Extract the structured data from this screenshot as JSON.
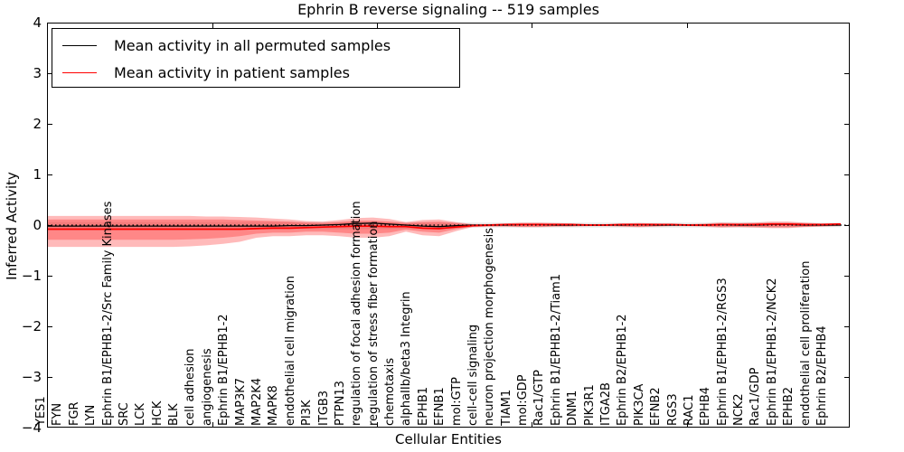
{
  "figure": {
    "title": "Ephrin B reverse signaling -- 519 samples",
    "xlabel": "Cellular Entities",
    "ylabel": "Inferred Activity"
  },
  "legend": {
    "position": "upper-left",
    "entries": [
      {
        "label": "Mean activity in all permuted samples",
        "color": "#000000"
      },
      {
        "label": "Mean activity in patient samples",
        "color": "#ff0000"
      }
    ]
  },
  "chart_data": {
    "type": "area",
    "subtype": "violin-bands-with-mean-lines",
    "title": "Ephrin B reverse signaling -- 519 samples",
    "xlabel": "Cellular Entities",
    "ylabel": "Inferred Activity",
    "ylim": [
      -4,
      4
    ],
    "yticks": [
      "4",
      "3",
      "2",
      "1",
      "0",
      "−1",
      "−2",
      "−3",
      "−4"
    ],
    "grid": false,
    "legend_position": "upper-left",
    "zero_line": {
      "y": 0,
      "style": "dotted",
      "color": "#000000"
    },
    "colors": {
      "patient_band": "rgba(255,0,0,0.27)",
      "permuted_band": "rgba(90,90,90,0.13)",
      "permuted_line": "#000000",
      "patient_line": "#ff0000"
    },
    "categories": [
      "YES1",
      "FYN",
      "FGR",
      "LYN",
      "Ephrin B1/EPHB1-2/Src Family Kinases",
      "SRC",
      "LCK",
      "HCK",
      "BLK",
      "cell adhesion",
      "angiogenesis",
      "Ephrin B1/EPHB1-2",
      "MAP3K7",
      "MAP2K4",
      "MAPK8",
      "endothelial cell migration",
      "PI3K",
      "ITGB3",
      "PTPN13",
      "regulation of focal adhesion formation",
      "regulation of stress fiber formation",
      "chemotaxis",
      "alphaIIb/beta3 Integrin",
      "EPHB1",
      "EFNB1",
      "mol:GTP",
      "cell-cell signaling",
      "neuron projection morphogenesis",
      "TIAM1",
      "mol:GDP",
      "Rac1/GTP",
      "Ephrin B1/EPHB1-2/Tiam1",
      "DNM1",
      "PIK3R1",
      "ITGA2B",
      "Ephrin B2/EPHB1-2",
      "PIK3CA",
      "EFNB2",
      "RGS3",
      "RAC1",
      "EPHB4",
      "Ephrin B1/EPHB1-2/RGS3",
      "NCK2",
      "Rac1/GDP",
      "Ephrin B1/EPHB1-2/NCK2",
      "EPHB2",
      "endothelial cell proliferation",
      "Ephrin B2/EPHB4"
    ],
    "series": [
      {
        "name": "Mean activity in all permuted samples",
        "type": "line",
        "color": "#000000",
        "values": [
          -0.02,
          -0.02,
          -0.02,
          -0.02,
          -0.02,
          -0.02,
          -0.02,
          -0.02,
          -0.02,
          -0.02,
          -0.02,
          -0.02,
          -0.02,
          -0.02,
          -0.01,
          -0.01,
          0.0,
          0.01,
          0.03,
          0.04,
          0.02,
          0.0,
          -0.02,
          -0.03,
          -0.01,
          0.0,
          0.0,
          0.0,
          0.01,
          0.01,
          0.0,
          0.0,
          0.0,
          0.0,
          0.0,
          0.01,
          0.0,
          0.0,
          0.0,
          0.0,
          0.01,
          0.0,
          0.0,
          0.01,
          0.01,
          0.0,
          0.0,
          0.0
        ]
      },
      {
        "name": "Mean activity in patient samples",
        "type": "line",
        "color": "#ff0000",
        "values": [
          -0.08,
          -0.08,
          -0.08,
          -0.08,
          -0.08,
          -0.08,
          -0.08,
          -0.08,
          -0.08,
          -0.08,
          -0.08,
          -0.08,
          -0.07,
          -0.06,
          -0.06,
          -0.05,
          -0.04,
          -0.03,
          -0.02,
          -0.02,
          -0.03,
          -0.03,
          -0.06,
          -0.07,
          -0.04,
          -0.01,
          0.0,
          0.01,
          0.01,
          0.01,
          0.01,
          0.01,
          0.0,
          0.0,
          0.01,
          0.01,
          0.01,
          0.01,
          0.0,
          0.0,
          0.01,
          0.01,
          0.01,
          0.02,
          0.02,
          0.01,
          0.01,
          0.02
        ]
      },
      {
        "name": "Patient sample spread (outer)",
        "type": "band",
        "color": "rgba(255,0,0,0.27)",
        "upper": [
          0.18,
          0.18,
          0.18,
          0.18,
          0.18,
          0.18,
          0.18,
          0.18,
          0.18,
          0.17,
          0.17,
          0.16,
          0.15,
          0.13,
          0.11,
          0.08,
          0.07,
          0.1,
          0.14,
          0.15,
          0.12,
          0.06,
          0.1,
          0.11,
          0.06,
          0.02,
          0.02,
          0.03,
          0.05,
          0.05,
          0.04,
          0.03,
          0.02,
          0.02,
          0.03,
          0.04,
          0.03,
          0.02,
          0.02,
          0.03,
          0.05,
          0.04,
          0.05,
          0.07,
          0.07,
          0.05,
          0.03,
          0.03
        ],
        "lower": [
          -0.43,
          -0.43,
          -0.43,
          -0.43,
          -0.43,
          -0.43,
          -0.43,
          -0.43,
          -0.42,
          -0.4,
          -0.37,
          -0.33,
          -0.25,
          -0.22,
          -0.22,
          -0.2,
          -0.2,
          -0.22,
          -0.25,
          -0.25,
          -0.22,
          -0.13,
          -0.2,
          -0.22,
          -0.12,
          -0.04,
          -0.03,
          -0.03,
          -0.04,
          -0.04,
          -0.03,
          -0.03,
          -0.02,
          -0.02,
          -0.03,
          -0.04,
          -0.03,
          -0.02,
          -0.02,
          -0.03,
          -0.05,
          -0.04,
          -0.05,
          -0.06,
          -0.06,
          -0.04,
          -0.03,
          -0.02
        ]
      },
      {
        "name": "Patient sample spread (inner)",
        "type": "band",
        "color": "rgba(255,0,0,0.27)",
        "upper": [
          0.11,
          0.11,
          0.11,
          0.11,
          0.11,
          0.11,
          0.11,
          0.11,
          0.11,
          0.11,
          0.11,
          0.1,
          0.09,
          0.08,
          0.07,
          0.05,
          0.04,
          0.06,
          0.09,
          0.09,
          0.07,
          0.04,
          0.06,
          0.07,
          0.04,
          0.01,
          0.01,
          0.02,
          0.03,
          0.03,
          0.02,
          0.02,
          0.01,
          0.01,
          0.02,
          0.02,
          0.02,
          0.01,
          0.01,
          0.02,
          0.03,
          0.02,
          0.03,
          0.04,
          0.04,
          0.03,
          0.02,
          0.02
        ],
        "lower": [
          -0.29,
          -0.29,
          -0.29,
          -0.29,
          -0.29,
          -0.29,
          -0.29,
          -0.29,
          -0.28,
          -0.27,
          -0.25,
          -0.22,
          -0.17,
          -0.15,
          -0.15,
          -0.13,
          -0.13,
          -0.15,
          -0.17,
          -0.17,
          -0.15,
          -0.09,
          -0.13,
          -0.15,
          -0.08,
          -0.03,
          -0.02,
          -0.02,
          -0.03,
          -0.03,
          -0.02,
          -0.02,
          -0.01,
          -0.01,
          -0.02,
          -0.03,
          -0.02,
          -0.01,
          -0.01,
          -0.02,
          -0.03,
          -0.03,
          -0.03,
          -0.04,
          -0.04,
          -0.03,
          -0.02,
          -0.01
        ]
      },
      {
        "name": "Permuted sample spread",
        "type": "band",
        "color": "rgba(90,90,90,0.13)",
        "upper": [
          0.06,
          0.06,
          0.06,
          0.06,
          0.06,
          0.06,
          0.06,
          0.06,
          0.06,
          0.06,
          0.06,
          0.06,
          0.06,
          0.06,
          0.06,
          0.06,
          0.06,
          0.06,
          0.06,
          0.06,
          0.06,
          0.05,
          0.05,
          0.05,
          0.05,
          0.05,
          0.05,
          0.05,
          0.05,
          0.05,
          0.05,
          0.05,
          0.05,
          0.05,
          0.05,
          0.05,
          0.05,
          0.05,
          0.05,
          0.05,
          0.06,
          0.06,
          0.06,
          0.06,
          0.06,
          0.05,
          0.05,
          0.05
        ],
        "lower": [
          -0.1,
          -0.1,
          -0.1,
          -0.1,
          -0.1,
          -0.1,
          -0.1,
          -0.1,
          -0.1,
          -0.1,
          -0.1,
          -0.1,
          -0.08,
          -0.08,
          -0.08,
          -0.08,
          -0.08,
          -0.08,
          -0.08,
          -0.08,
          -0.08,
          -0.07,
          -0.07,
          -0.07,
          -0.07,
          -0.05,
          -0.05,
          -0.05,
          -0.05,
          -0.05,
          -0.05,
          -0.05,
          -0.05,
          -0.05,
          -0.05,
          -0.05,
          -0.05,
          -0.05,
          -0.05,
          -0.05,
          -0.05,
          -0.05,
          -0.05,
          -0.05,
          -0.05,
          -0.04,
          -0.04,
          -0.04
        ]
      }
    ]
  }
}
